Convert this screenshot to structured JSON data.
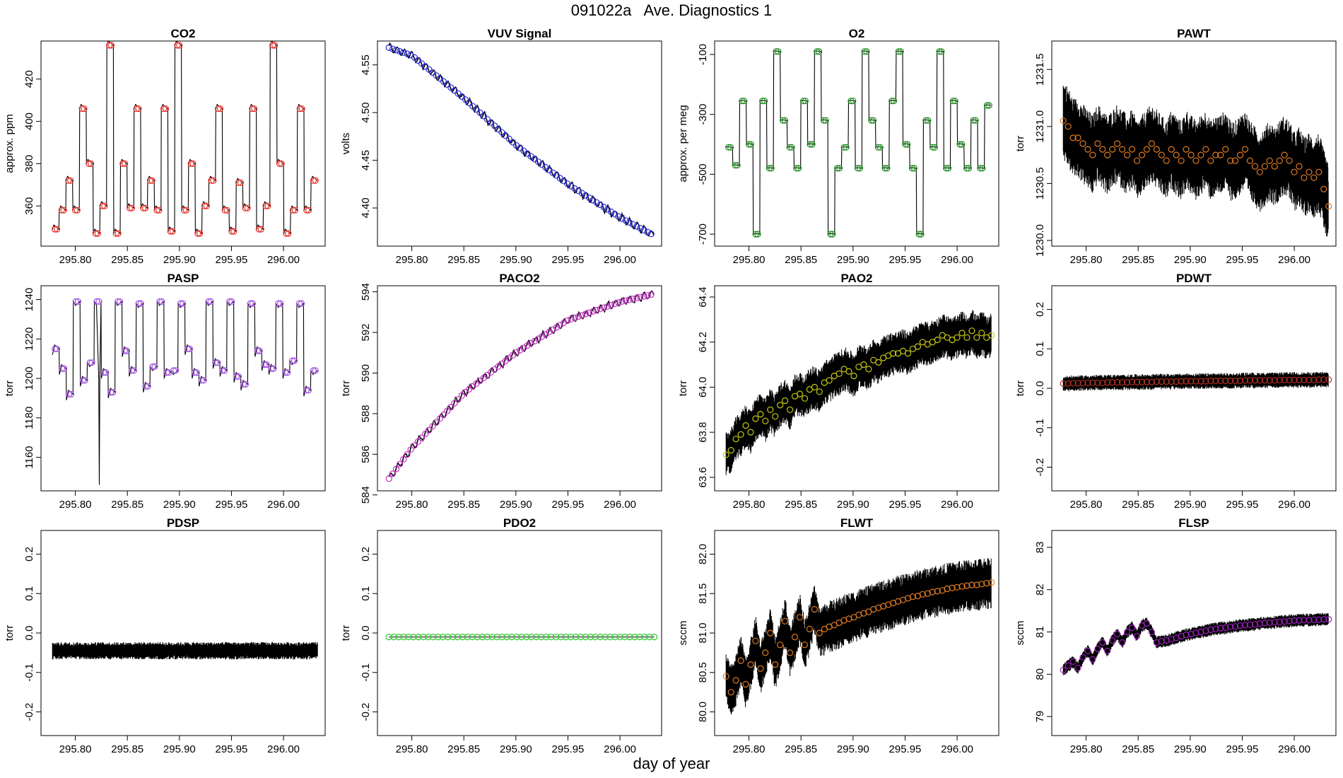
{
  "title": "091022a   Ave. Diagnostics 1",
  "shared_xlabel": "day of year",
  "colors": {
    "foreground": "#000000",
    "background": "#ffffff"
  },
  "chart_data": [
    {
      "type": "line",
      "title": "CO2",
      "ylabel": "approx. ppm",
      "xlim": [
        295.767,
        296.04
      ],
      "ylim": [
        341,
        438
      ],
      "xticks": [
        295.8,
        295.85,
        295.9,
        295.95,
        296.0
      ],
      "xtick_labels": [
        "295.80",
        "295.85",
        "295.90",
        "295.95",
        "296.00"
      ],
      "yticks": [
        360,
        380,
        400,
        420
      ],
      "ytick_labels": [
        "360",
        "380",
        "400",
        "420"
      ],
      "marker_color": "#e8302a",
      "line_style": "steps",
      "start": 295.778,
      "end": 296.033,
      "step": 0.0035,
      "levels": [
        349,
        358,
        372,
        358,
        406,
        380,
        347,
        360,
        436,
        347,
        380,
        359,
        406,
        359,
        372,
        358,
        406,
        348,
        436,
        358,
        380,
        347,
        360,
        372,
        406,
        358,
        348,
        371,
        359,
        406,
        349,
        360,
        436,
        380,
        347,
        358,
        406,
        358,
        372
      ],
      "hold_points": 2
    },
    {
      "type": "line",
      "title": "VUV Signal",
      "ylabel": "volts",
      "xlim": [
        295.767,
        296.04
      ],
      "ylim": [
        4.36,
        4.575
      ],
      "xticks": [
        295.8,
        295.85,
        295.9,
        295.95,
        296.0
      ],
      "xtick_labels": [
        "295.80",
        "295.85",
        "295.90",
        "295.95",
        "296.00"
      ],
      "yticks": [
        4.4,
        4.45,
        4.5,
        4.55
      ],
      "ytick_labels": [
        "4.40",
        "4.45",
        "4.50",
        "4.55"
      ],
      "marker_color": "#2b2bd6",
      "line_style": "smooth",
      "start": 295.778,
      "end": 296.033,
      "step": 0.0035,
      "trend": [
        [
          295.778,
          4.568
        ],
        [
          295.8,
          4.56
        ],
        [
          295.85,
          4.515
        ],
        [
          295.9,
          4.466
        ],
        [
          295.95,
          4.425
        ],
        [
          296.0,
          4.39
        ],
        [
          296.033,
          4.371
        ]
      ],
      "wiggle": 0.004
    },
    {
      "type": "line",
      "title": "O2",
      "ylabel": "approx. per meg",
      "xlim": [
        295.767,
        296.04
      ],
      "ylim": [
        -740,
        -55
      ],
      "xticks": [
        295.8,
        295.85,
        295.9,
        295.95,
        296.0
      ],
      "xtick_labels": [
        "295.80",
        "295.85",
        "295.90",
        "295.95",
        "296.00"
      ],
      "yticks": [
        -700,
        -500,
        -300,
        -100
      ],
      "ytick_labels": [
        "-700",
        "-500",
        "-300",
        "-100"
      ],
      "marker_color": "#1f8f1f",
      "line_style": "steps",
      "start": 295.778,
      "end": 296.033,
      "step": 0.0035,
      "levels": [
        -410,
        -470,
        -255,
        -400,
        -700,
        -255,
        -480,
        -90,
        -320,
        -410,
        -480,
        -255,
        -400,
        -90,
        -320,
        -700,
        -480,
        -410,
        -255,
        -480,
        -90,
        -320,
        -410,
        -480,
        -255,
        -90,
        -400,
        -480,
        -700,
        -320,
        -410,
        -90,
        -480,
        -255,
        -400,
        -480,
        -320,
        -480,
        -270
      ],
      "hold_points": 2
    },
    {
      "type": "noise",
      "title": "PAWT",
      "ylabel": "torr",
      "xlim": [
        295.767,
        296.04
      ],
      "ylim": [
        1229.95,
        1231.75
      ],
      "xticks": [
        295.8,
        295.85,
        295.9,
        295.95,
        296.0
      ],
      "xtick_labels": [
        "295.80",
        "295.85",
        "295.90",
        "295.95",
        "296.00"
      ],
      "yticks": [
        1230.0,
        1230.5,
        1231.0,
        1231.5
      ],
      "ytick_labels": [
        "1230.0",
        "1230.5",
        "1231.0",
        "1231.5"
      ],
      "marker_color": "#e07b20",
      "means": [
        1231.05,
        1231.0,
        1230.9,
        1230.9,
        1230.85,
        1230.8,
        1230.75,
        1230.85,
        1230.8,
        1230.75,
        1230.8,
        1230.85,
        1230.8,
        1230.75,
        1230.8,
        1230.7,
        1230.75,
        1230.8,
        1230.85,
        1230.8,
        1230.75,
        1230.7,
        1230.8,
        1230.75,
        1230.7,
        1230.8,
        1230.75,
        1230.7,
        1230.75,
        1230.8,
        1230.7,
        1230.75,
        1230.75,
        1230.8,
        1230.7,
        1230.7,
        1230.75,
        1230.8,
        1230.7,
        1230.65,
        1230.6,
        1230.65,
        1230.7,
        1230.65,
        1230.7,
        1230.75,
        1230.7,
        1230.6,
        1230.65,
        1230.55,
        1230.6,
        1230.55,
        1230.6,
        1230.45,
        1230.3
      ],
      "spread": 0.32
    },
    {
      "type": "line",
      "title": "PASP",
      "ylabel": "torr",
      "xlim": [
        295.767,
        296.04
      ],
      "ylim": [
        1143,
        1247
      ],
      "xticks": [
        295.8,
        295.85,
        295.9,
        295.95,
        296.0
      ],
      "xtick_labels": [
        "295.80",
        "295.85",
        "295.90",
        "295.95",
        "296.00"
      ],
      "yticks": [
        1160,
        1180,
        1200,
        1220,
        1240
      ],
      "ytick_labels": [
        "1160",
        "1180",
        "1200",
        "1220",
        "1240"
      ],
      "marker_color": "#a24fe0",
      "line_style": "sawtooth",
      "start": 295.778,
      "end": 296.033,
      "step": 0.0035,
      "levels": [
        1215,
        1205,
        1192,
        1239,
        1199,
        1208,
        1239,
        1203,
        1193,
        1239,
        1214,
        1204,
        1238,
        1196,
        1206,
        1239,
        1203,
        1204,
        1238,
        1215,
        1203,
        1199,
        1239,
        1208,
        1204,
        1239,
        1201,
        1197,
        1238,
        1214,
        1207,
        1205,
        1238,
        1203,
        1209,
        1238,
        1194,
        1204
      ],
      "hold_points": 2,
      "spike": {
        "x": 295.823,
        "y": 1146
      }
    },
    {
      "type": "line",
      "title": "PACO2",
      "ylabel": "torr",
      "xlim": [
        295.767,
        296.04
      ],
      "ylim": [
        584.2,
        594.3
      ],
      "xticks": [
        295.8,
        295.85,
        295.9,
        295.95,
        296.0
      ],
      "xtick_labels": [
        "295.80",
        "295.85",
        "295.90",
        "295.95",
        "296.00"
      ],
      "yticks": [
        584,
        586,
        588,
        590,
        592,
        594
      ],
      "ytick_labels": [
        "584",
        "586",
        "588",
        "590",
        "592",
        "594"
      ],
      "marker_color": "#c030c0",
      "line_style": "smooth",
      "start": 295.778,
      "end": 296.033,
      "step": 0.0035,
      "trend": [
        [
          295.778,
          584.8
        ],
        [
          295.8,
          586.3
        ],
        [
          295.85,
          589.0
        ],
        [
          295.9,
          591.0
        ],
        [
          295.95,
          592.6
        ],
        [
          296.0,
          593.5
        ],
        [
          296.033,
          593.9
        ]
      ],
      "wiggle": 0.18
    },
    {
      "type": "noise",
      "title": "PAO2",
      "ylabel": "torr",
      "xlim": [
        295.767,
        296.04
      ],
      "ylim": [
        63.54,
        64.45
      ],
      "xticks": [
        295.8,
        295.85,
        295.9,
        295.95,
        296.0
      ],
      "xtick_labels": [
        "295.80",
        "295.85",
        "295.90",
        "295.95",
        "296.00"
      ],
      "yticks": [
        63.6,
        63.8,
        64.0,
        64.2,
        64.4
      ],
      "ytick_labels": [
        "63.6",
        "63.8",
        "64.0",
        "64.2",
        "64.4"
      ],
      "marker_color": "#c8c814",
      "means": [
        63.7,
        63.72,
        63.77,
        63.79,
        63.83,
        63.8,
        63.86,
        63.88,
        63.85,
        63.9,
        63.87,
        63.92,
        63.94,
        63.9,
        63.96,
        63.97,
        63.95,
        63.99,
        64.0,
        63.98,
        64.02,
        64.03,
        64.05,
        64.06,
        64.08,
        64.07,
        64.05,
        64.09,
        64.1,
        64.08,
        64.12,
        64.11,
        64.13,
        64.14,
        64.15,
        64.15,
        64.16,
        64.15,
        64.17,
        64.18,
        64.2,
        64.19,
        64.2,
        64.21,
        64.23,
        64.22,
        64.21,
        64.22,
        64.24,
        64.22,
        64.25,
        64.22,
        64.24,
        64.22,
        64.23
      ],
      "spread": 0.09
    },
    {
      "type": "noise",
      "title": "PDWT",
      "ylabel": "torr",
      "xlim": [
        295.767,
        296.04
      ],
      "ylim": [
        -0.26,
        0.26
      ],
      "xticks": [
        295.8,
        295.85,
        295.9,
        295.95,
        296.0
      ],
      "xtick_labels": [
        "295.80",
        "295.85",
        "295.90",
        "295.95",
        "296.00"
      ],
      "yticks": [
        -0.2,
        -0.1,
        0.0,
        0.1,
        0.2
      ],
      "ytick_labels": [
        "-0.2",
        "-0.1",
        "0.0",
        "0.1",
        "0.2"
      ],
      "marker_color": "#b03020",
      "means": [
        0.012,
        0.012,
        0.013,
        0.013,
        0.013,
        0.014,
        0.014,
        0.014,
        0.014,
        0.015,
        0.015,
        0.015,
        0.015,
        0.015,
        0.016,
        0.016,
        0.016,
        0.016,
        0.016,
        0.017,
        0.017,
        0.017,
        0.017,
        0.017,
        0.018,
        0.018,
        0.018,
        0.018,
        0.018,
        0.018,
        0.019,
        0.019,
        0.019,
        0.019,
        0.019,
        0.019,
        0.019,
        0.02,
        0.02,
        0.02,
        0.02,
        0.02,
        0.02,
        0.02,
        0.021,
        0.021,
        0.021,
        0.021,
        0.021,
        0.021,
        0.021,
        0.021,
        0.022,
        0.022,
        0.022
      ],
      "spread": 0.018
    },
    {
      "type": "noise",
      "title": "PDSP",
      "ylabel": "torr",
      "xlim": [
        295.767,
        296.04
      ],
      "ylim": [
        -0.26,
        0.26
      ],
      "xticks": [
        295.8,
        295.85,
        295.9,
        295.95,
        296.0
      ],
      "xtick_labels": [
        "295.80",
        "295.85",
        "295.90",
        "295.95",
        "296.00"
      ],
      "yticks": [
        -0.2,
        -0.1,
        0.0,
        0.1,
        0.2
      ],
      "ytick_labels": [
        "-0.2",
        "-0.1",
        "0.0",
        "0.1",
        "0.2"
      ],
      "marker_color": "#2b2bd6",
      "means": [
        -0.045,
        -0.045,
        -0.045,
        -0.045,
        -0.045,
        -0.045,
        -0.045,
        -0.045,
        -0.045,
        -0.045,
        -0.045,
        -0.045,
        -0.045,
        -0.045,
        -0.045,
        -0.045,
        -0.045,
        -0.045,
        -0.045,
        -0.045,
        -0.045,
        -0.045,
        -0.045,
        -0.045,
        -0.045,
        -0.045,
        -0.045,
        -0.045,
        -0.045,
        -0.045,
        -0.045,
        -0.045,
        -0.045,
        -0.045,
        -0.045,
        -0.045,
        -0.045,
        -0.045,
        -0.045,
        -0.045,
        -0.045,
        -0.045,
        -0.045,
        -0.045,
        -0.045,
        -0.045,
        -0.045,
        -0.045,
        -0.045,
        -0.045,
        -0.045,
        -0.045,
        -0.045,
        -0.045,
        -0.045
      ],
      "spread": 0.02,
      "hide_markers": true
    },
    {
      "type": "flat",
      "title": "PDO2",
      "ylabel": "torr",
      "xlim": [
        295.767,
        296.04
      ],
      "ylim": [
        -0.26,
        0.26
      ],
      "xticks": [
        295.8,
        295.85,
        295.9,
        295.95,
        296.0
      ],
      "xtick_labels": [
        "295.80",
        "295.85",
        "295.90",
        "295.95",
        "296.00"
      ],
      "yticks": [
        -0.2,
        -0.1,
        0.0,
        0.1,
        0.2
      ],
      "ytick_labels": [
        "-0.2",
        "-0.1",
        "0.0",
        "0.1",
        "0.2"
      ],
      "marker_color": "#2cc72c",
      "means": [
        -0.01,
        -0.01,
        -0.01,
        -0.01,
        -0.01,
        -0.01,
        -0.01,
        -0.01,
        -0.01,
        -0.01,
        -0.01,
        -0.01,
        -0.01,
        -0.01,
        -0.01,
        -0.01,
        -0.01,
        -0.01,
        -0.01,
        -0.01,
        -0.01,
        -0.01,
        -0.01,
        -0.01,
        -0.01,
        -0.01,
        -0.01,
        -0.01,
        -0.01,
        -0.01,
        -0.01,
        -0.01,
        -0.01,
        -0.01,
        -0.01,
        -0.01,
        -0.01,
        -0.01,
        -0.01,
        -0.01,
        -0.01,
        -0.01,
        -0.01,
        -0.01,
        -0.01,
        -0.01,
        -0.01,
        -0.01,
        -0.01,
        -0.01,
        -0.01,
        -0.01,
        -0.01,
        -0.01,
        -0.01
      ],
      "spread": 0
    },
    {
      "type": "noise",
      "title": "FLWT",
      "ylabel": "sccm",
      "xlim": [
        295.767,
        296.04
      ],
      "ylim": [
        79.7,
        82.3
      ],
      "xticks": [
        295.8,
        295.85,
        295.9,
        295.95,
        296.0
      ],
      "xtick_labels": [
        "295.80",
        "295.85",
        "295.90",
        "295.95",
        "296.00"
      ],
      "yticks": [
        80.0,
        80.5,
        81.0,
        81.5,
        82.0
      ],
      "ytick_labels": [
        "80.0",
        "80.5",
        "81.0",
        "81.5",
        "82.0"
      ],
      "marker_color": "#e07b20",
      "means": [
        80.45,
        80.25,
        80.4,
        80.65,
        80.35,
        80.6,
        80.9,
        80.55,
        80.75,
        81.0,
        80.6,
        80.85,
        81.15,
        80.75,
        80.95,
        81.2,
        80.85,
        81.05,
        81.3,
        81.0,
        81.05,
        81.08,
        81.1,
        81.13,
        81.16,
        81.18,
        81.2,
        81.23,
        81.25,
        81.27,
        81.3,
        81.32,
        81.34,
        81.36,
        81.38,
        81.4,
        81.42,
        81.44,
        81.46,
        81.47,
        81.49,
        81.5,
        81.52,
        81.53,
        81.54,
        81.56,
        81.57,
        81.58,
        81.59,
        81.6,
        81.61,
        81.61,
        81.62,
        81.63,
        81.64
      ],
      "spread": 0.3
    },
    {
      "type": "noise",
      "title": "FLSP",
      "ylabel": "sccm",
      "xlim": [
        295.767,
        296.04
      ],
      "ylim": [
        78.55,
        83.4
      ],
      "xticks": [
        295.8,
        295.85,
        295.9,
        295.95,
        296.0
      ],
      "xtick_labels": [
        "295.80",
        "295.85",
        "295.90",
        "295.95",
        "296.00"
      ],
      "yticks": [
        79,
        80,
        81,
        82,
        83
      ],
      "ytick_labels": [
        "79",
        "80",
        "81",
        "82",
        "83"
      ],
      "marker_color": "#a020c0",
      "means": [
        80.1,
        80.2,
        80.3,
        80.15,
        80.4,
        80.55,
        80.35,
        80.6,
        80.75,
        80.55,
        80.8,
        80.95,
        80.75,
        81.0,
        81.1,
        80.9,
        81.15,
        81.2,
        81.0,
        80.75,
        80.78,
        80.8,
        80.83,
        80.86,
        80.9,
        80.93,
        80.95,
        80.98,
        81.0,
        81.03,
        81.05,
        81.07,
        81.09,
        81.1,
        81.12,
        81.13,
        81.15,
        81.16,
        81.17,
        81.18,
        81.2,
        81.21,
        81.22,
        81.23,
        81.24,
        81.25,
        81.26,
        81.27,
        81.27,
        81.28,
        81.28,
        81.29,
        81.29,
        81.3,
        81.3
      ],
      "spread": 0.14
    }
  ]
}
